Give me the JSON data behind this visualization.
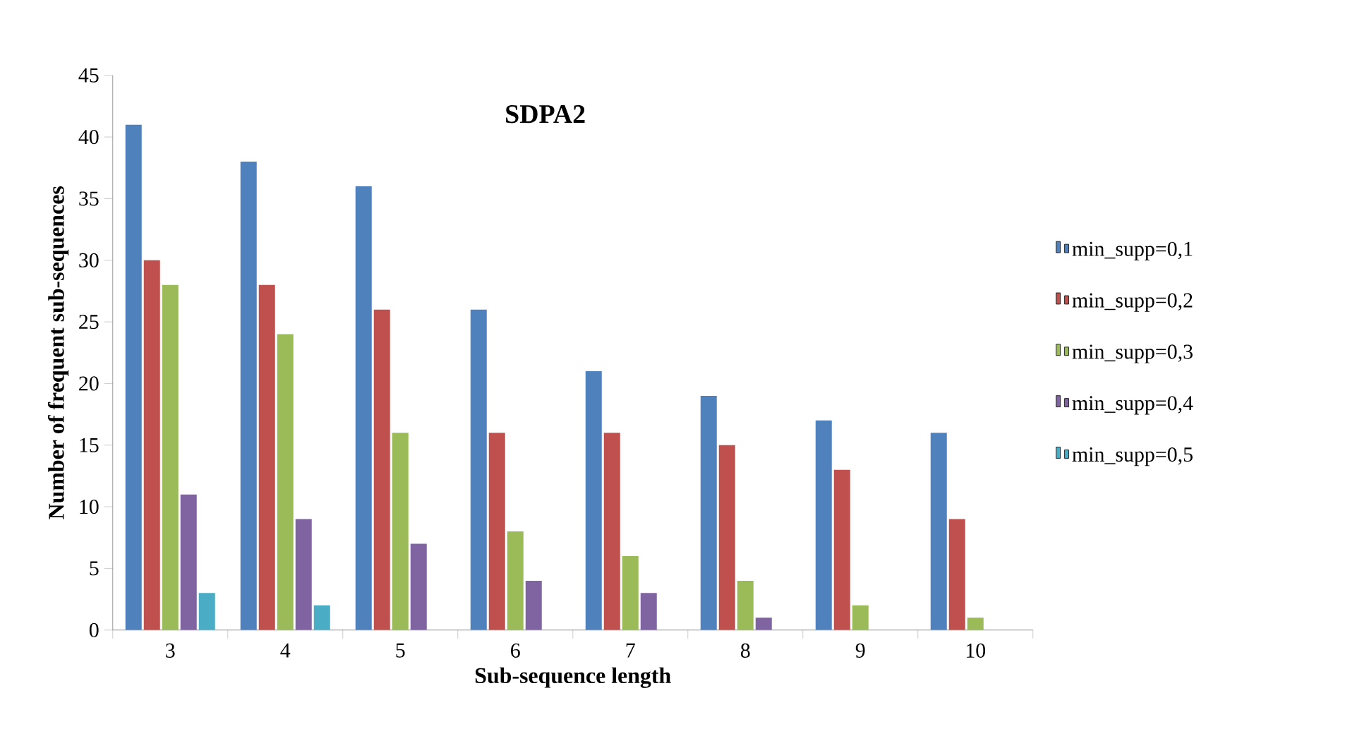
{
  "chart_data": {
    "type": "bar",
    "title": "SDPA2",
    "xlabel": "Sub-sequence length",
    "ylabel": "Number of frequent sub-sequences",
    "categories": [
      "3",
      "4",
      "5",
      "6",
      "7",
      "8",
      "9",
      "10"
    ],
    "series": [
      {
        "name": "min_supp=0,1",
        "color": "#4f81bd",
        "values": [
          41,
          38,
          36,
          26,
          21,
          19,
          17,
          16
        ]
      },
      {
        "name": "min_supp=0,2",
        "color": "#c0504d",
        "values": [
          30,
          28,
          26,
          16,
          16,
          15,
          13,
          9
        ]
      },
      {
        "name": "min_supp=0,3",
        "color": "#9bbb59",
        "values": [
          28,
          24,
          16,
          8,
          6,
          4,
          2,
          1
        ]
      },
      {
        "name": "min_supp=0,4",
        "color": "#8064a2",
        "values": [
          11,
          9,
          7,
          4,
          3,
          1,
          0,
          0
        ]
      },
      {
        "name": "min_supp=0,5",
        "color": "#4bacc6",
        "values": [
          3,
          2,
          0,
          0,
          0,
          0,
          0,
          0
        ]
      }
    ],
    "ylim": [
      0,
      45
    ],
    "yticks": [
      0,
      5,
      10,
      15,
      20,
      25,
      30,
      35,
      40,
      45
    ],
    "grid": false,
    "legend": "right"
  }
}
